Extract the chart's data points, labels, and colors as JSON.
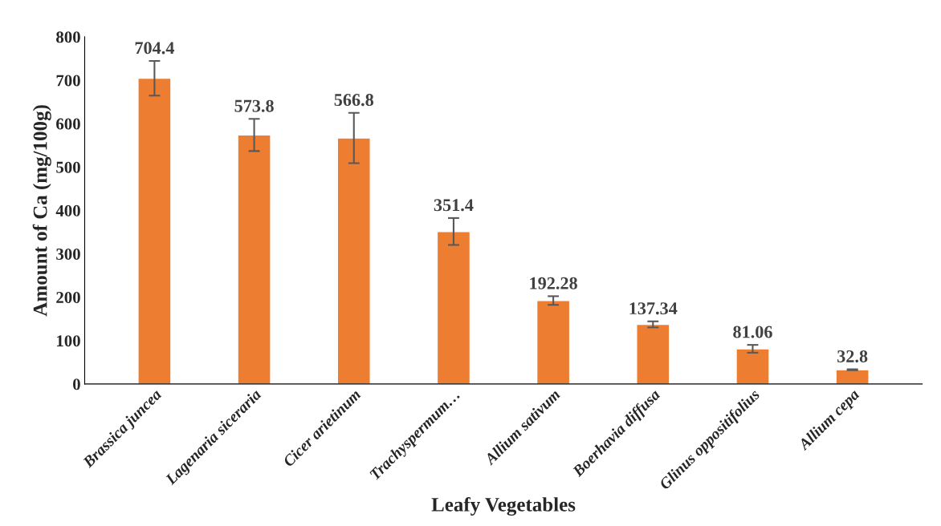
{
  "chart_data": {
    "type": "bar",
    "xlabel": "Leafy Vegetables",
    "ylabel": "Amount of Ca (mg/100g)",
    "categories": [
      "Brassica juncea",
      "Lagenaria siceraria",
      "Cicer arietinum",
      "Trachyspermum…",
      "Allium sativum",
      "Boerhavia diffusa",
      "Glinus oppositifolius",
      "Allium cepa"
    ],
    "values": [
      704.4,
      573.8,
      566.8,
      351.4,
      192.28,
      137.34,
      81.06,
      32.8
    ],
    "errors": [
      40,
      37,
      58,
      31,
      10,
      7,
      9,
      1
    ],
    "color": "#ed7d31",
    "ylim": [
      0,
      800
    ],
    "yticks": [
      0,
      100,
      200,
      300,
      400,
      500,
      600,
      700,
      800
    ],
    "data_labels": true,
    "grid": false
  }
}
